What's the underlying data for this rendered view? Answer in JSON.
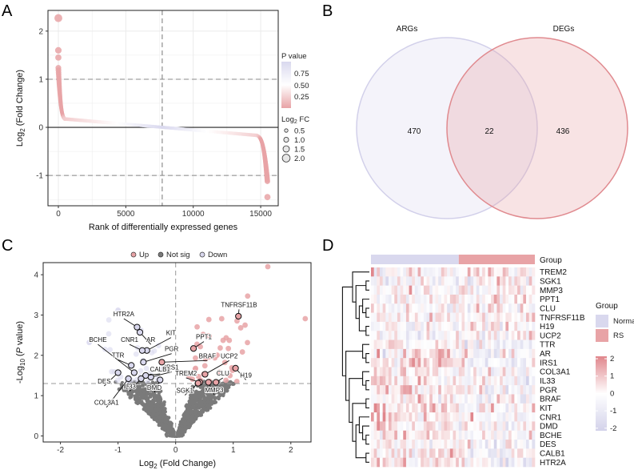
{
  "panel_labels": {
    "a": "A",
    "b": "B",
    "c": "C",
    "d": "D"
  },
  "colors": {
    "pink": "#e8a3a6",
    "lavender": "#d9d8ee",
    "grey": "#7a7a7a",
    "heat_high": "#e0868c",
    "heat_low": "#d3d2ea"
  },
  "chart_data": [
    {
      "type": "scatter",
      "panel": "A",
      "xlabel": "Rank of differentially expressed genes",
      "ylabel_main": "Log",
      "ylabel_sub": "2",
      "ylabel_rest": " (Fold Change)",
      "xlim": [
        -770,
        16300
      ],
      "ylim": [
        -1.63,
        2.43
      ],
      "xticks": [
        0,
        5000,
        10000,
        15000
      ],
      "xtick_labels": [
        "0",
        "5000",
        "10000",
        "15000"
      ],
      "yticks": [
        -1,
        0,
        1,
        2
      ],
      "ytick_labels": [
        "-1",
        "0",
        "1",
        "2"
      ],
      "hlines": [
        1,
        -1
      ],
      "vline": 7700,
      "n_genes": 15500,
      "outliers": [
        [
          0,
          2.27
        ],
        [
          0,
          1.6
        ],
        [
          0,
          1.45
        ],
        [
          15500,
          -1.45
        ]
      ],
      "legend_color": {
        "title": "P value",
        "ticks": [
          "0.75",
          "0.50",
          "0.25"
        ]
      },
      "legend_size": {
        "title_main": "Log",
        "title_sub": "2",
        "title_rest": " FC",
        "labels": [
          "0.5",
          "1.0",
          "1.5",
          "2.0"
        ]
      }
    },
    {
      "type": "venn",
      "panel": "B",
      "sets": [
        {
          "name": "ARGs",
          "only": "470"
        },
        {
          "name": "DEGs",
          "only": "436"
        }
      ],
      "intersection": "22"
    },
    {
      "type": "scatter",
      "panel": "C",
      "legend": [
        "Up",
        "Not sig",
        "Down"
      ],
      "xlabel_main": "Log",
      "xlabel_sub": "2",
      "xlabel_rest": " (Fold Change)",
      "ylabel_main": "-Log",
      "ylabel_sub": "10",
      "ylabel_p": "P",
      "ylabel_rest": " value)",
      "ylabel_open": " (",
      "xlim": [
        -2.3,
        2.35
      ],
      "ylim": [
        -0.15,
        4.3
      ],
      "xticks": [
        -2,
        -1,
        0,
        1,
        2
      ],
      "xtick_labels": [
        "-2",
        "-1",
        "0",
        "1",
        "2"
      ],
      "yticks": [
        0,
        1,
        2,
        3,
        4
      ],
      "ytick_labels": [
        "0",
        "1",
        "2",
        "3",
        "4"
      ],
      "p_threshold": 1.3,
      "labeled_genes": [
        {
          "gene": "HTR2A",
          "x": -0.67,
          "y": 2.7,
          "lx": -0.9,
          "ly": 2.97,
          "group": "Down"
        },
        {
          "gene": "AR",
          "x": -0.62,
          "y": 2.57,
          "lx": -0.43,
          "ly": 2.33,
          "group": "Down"
        },
        {
          "gene": "KIT",
          "x": -0.5,
          "y": 2.12,
          "lx": -0.08,
          "ly": 2.5,
          "group": "Down"
        },
        {
          "gene": "CNR1",
          "x": -0.58,
          "y": 2.12,
          "lx": -0.8,
          "ly": 2.33,
          "group": "Down"
        },
        {
          "gene": "PGR",
          "x": -0.56,
          "y": 1.83,
          "lx": -0.07,
          "ly": 2.1,
          "group": "Down"
        },
        {
          "gene": "BCHE",
          "x": -0.72,
          "y": 1.57,
          "lx": -1.35,
          "ly": 2.33,
          "group": "Down"
        },
        {
          "gene": "TTR",
          "x": -0.77,
          "y": 1.75,
          "lx": -1.0,
          "ly": 1.95,
          "group": "Down"
        },
        {
          "gene": "IRS1",
          "x": -0.43,
          "y": 1.46,
          "lx": -0.07,
          "ly": 1.65,
          "group": "Down"
        },
        {
          "gene": "CALB1",
          "x": -0.52,
          "y": 1.5,
          "lx": -0.27,
          "ly": 1.6,
          "group": "Down"
        },
        {
          "gene": "DES",
          "x": -1.0,
          "y": 1.57,
          "lx": -1.24,
          "ly": 1.3,
          "group": "Down"
        },
        {
          "gene": "IL33",
          "x": -0.6,
          "y": 1.42,
          "lx": -0.8,
          "ly": 1.17,
          "group": "Down"
        },
        {
          "gene": "COL3A1",
          "x": -0.82,
          "y": 1.42,
          "lx": -1.2,
          "ly": 0.77,
          "group": "Down"
        },
        {
          "gene": "DMD",
          "x": -0.27,
          "y": 1.39,
          "lx": -0.37,
          "ly": 1.14,
          "group": "Down"
        },
        {
          "gene": "BRAF",
          "x": -0.24,
          "y": 1.83,
          "lx": 0.55,
          "ly": 1.93,
          "group": "Up"
        },
        {
          "gene": "PPT1",
          "x": 0.31,
          "y": 2.17,
          "lx": 0.49,
          "ly": 2.4,
          "group": "Up"
        },
        {
          "gene": "TNFRSF11B",
          "x": 1.09,
          "y": 2.97,
          "lx": 1.1,
          "ly": 3.2,
          "group": "Up"
        },
        {
          "gene": "UCP2",
          "x": 0.51,
          "y": 1.53,
          "lx": 0.93,
          "ly": 1.93,
          "group": "Up"
        },
        {
          "gene": "H19",
          "x": 1.04,
          "y": 1.68,
          "lx": 1.22,
          "ly": 1.45,
          "group": "Up"
        },
        {
          "gene": "TREM2",
          "x": 0.42,
          "y": 1.33,
          "lx": 0.18,
          "ly": 1.5,
          "group": "Up"
        },
        {
          "gene": "CLU",
          "x": 0.7,
          "y": 1.33,
          "lx": 0.82,
          "ly": 1.5,
          "group": "Up"
        },
        {
          "gene": "MMP3",
          "x": 0.57,
          "y": 1.33,
          "lx": 0.67,
          "ly": 1.08,
          "group": "Up"
        },
        {
          "gene": "SGK1",
          "x": 0.39,
          "y": 1.31,
          "lx": 0.16,
          "ly": 1.07,
          "group": "Up"
        }
      ]
    },
    {
      "type": "heatmap",
      "panel": "D",
      "genes": [
        "TREM2",
        "SGK1",
        "MMP3",
        "PPT1",
        "CLU",
        "TNFRSF11B",
        "H19",
        "UCP2",
        "TTR",
        "AR",
        "IRS1",
        "COL3A1",
        "IL33",
        "PGR",
        "BRAF",
        "KIT",
        "CNR1",
        "DMD",
        "BCHE",
        "DES",
        "CALB1",
        "HTR2A"
      ],
      "group_label": "Group",
      "groups": [
        {
          "name": "Normal",
          "n": 30
        },
        {
          "name": "RS",
          "n": 26
        }
      ],
      "legend_title": "Group",
      "colorbar_ticks": [
        "2",
        "1",
        "0",
        "-1",
        "-2"
      ],
      "value_range": [
        -2,
        2
      ],
      "dendrogram": [
        [
          0,
          [
            [
              1,
              2
            ],
            [
              [
                3,
                [
                  4,
                  5
                ]
              ],
              [
                6,
                7
              ]
            ]
          ]
        ],
        [
          [
            8,
            [
              9,
              10
            ]
          ],
          [
            [
              11,
              [
                12,
                13
              ]
            ],
            [
              [
                14,
                15
              ],
              [
                [
                  16,
                  [
                    17,
                    [
                      18,
                      19
                    ]
                  ]
                ],
                [
                  20,
                  21
                ]
              ]
            ]
          ]
        ]
      ]
    }
  ]
}
